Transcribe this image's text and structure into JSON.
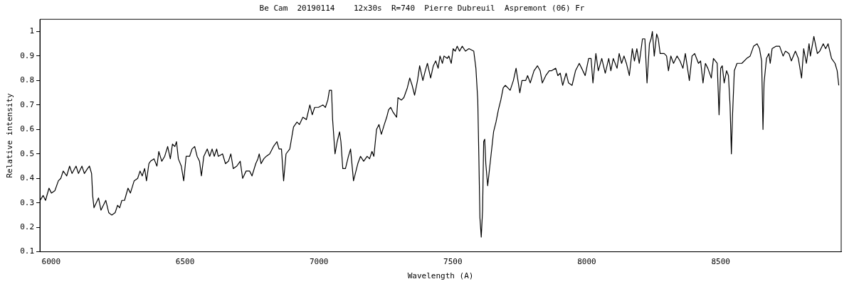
{
  "chart_data": {
    "type": "line",
    "title": "Be Cam  20190114    12x30s  R=740  Pierre Dubreuil  Aspremont (06) Fr",
    "xlabel": "Wavelength (A)",
    "ylabel": "Relative intensity",
    "xlim": [
      5958,
      8950
    ],
    "xticks": [
      6000,
      6500,
      7000,
      7500,
      8000,
      8500
    ],
    "ylim": [
      0.1,
      1.05
    ],
    "yticks": [
      0.1,
      0.2,
      0.3,
      0.4,
      0.5,
      0.6,
      0.7,
      0.8,
      0.9,
      1
    ],
    "grid": false,
    "legend": false,
    "marker": "none",
    "line_style": "solid",
    "series": [
      {
        "color": "#000000",
        "x": [
          5959,
          5970,
          5979,
          5992,
          6001,
          6014,
          6027,
          6036,
          6045,
          6058,
          6069,
          6078,
          6093,
          6102,
          6115,
          6124,
          6136,
          6143,
          6151,
          6155,
          6160,
          6177,
          6186,
          6204,
          6215,
          6226,
          6239,
          6248,
          6256,
          6264,
          6274,
          6287,
          6296,
          6310,
          6323,
          6332,
          6340,
          6349,
          6356,
          6365,
          6371,
          6384,
          6395,
          6402,
          6413,
          6424,
          6435,
          6445,
          6453,
          6462,
          6468,
          6475,
          6486,
          6495,
          6504,
          6517,
          6526,
          6536,
          6545,
          6554,
          6561,
          6570,
          6583,
          6592,
          6601,
          6609,
          6618,
          6624,
          6640,
          6651,
          6662,
          6671,
          6680,
          6693,
          6706,
          6715,
          6728,
          6741,
          6750,
          6764,
          6772,
          6777,
          6784,
          6794,
          6803,
          6816,
          6830,
          6843,
          6851,
          6860,
          6868,
          6877,
          6891,
          6905,
          6918,
          6927,
          6940,
          6953,
          6966,
          6975,
          6984,
          6998,
          7015,
          7024,
          7033,
          7039,
          7047,
          7051,
          7060,
          7068,
          7077,
          7082,
          7089,
          7099,
          7110,
          7118,
          7129,
          7145,
          7155,
          7167,
          7180,
          7189,
          7198,
          7205,
          7215,
          7224,
          7233,
          7244,
          7253,
          7260,
          7268,
          7277,
          7290,
          7295,
          7308,
          7317,
          7330,
          7339,
          7348,
          7357,
          7368,
          7376,
          7388,
          7397,
          7405,
          7417,
          7427,
          7436,
          7445,
          7452,
          7461,
          7467,
          7479,
          7485,
          7494,
          7501,
          7509,
          7516,
          7525,
          7535,
          7547,
          7560,
          7578,
          7586,
          7593,
          7597,
          7601,
          7606,
          7611,
          7615,
          7619,
          7623,
          7630,
          7639,
          7652,
          7661,
          7670,
          7679,
          7688,
          7696,
          7705,
          7714,
          7726,
          7736,
          7750,
          7758,
          7772,
          7779,
          7789,
          7803,
          7816,
          7826,
          7834,
          7847,
          7860,
          7869,
          7884,
          7892,
          7901,
          7910,
          7923,
          7932,
          7945,
          7958,
          7972,
          7981,
          7994,
          8007,
          8016,
          8023,
          8034,
          8043,
          8056,
          8069,
          8082,
          8090,
          8099,
          8113,
          8121,
          8130,
          8139,
          8148,
          8159,
          8170,
          8178,
          8187,
          8196,
          8208,
          8217,
          8225,
          8234,
          8240,
          8245,
          8252,
          8261,
          8267,
          8274,
          8289,
          8298,
          8305,
          8314,
          8324,
          8337,
          8348,
          8359,
          8368,
          8383,
          8393,
          8403,
          8417,
          8425,
          8434,
          8443,
          8452,
          8465,
          8473,
          8487,
          8494,
          8500,
          8506,
          8513,
          8522,
          8529,
          8535,
          8540,
          8544,
          8551,
          8561,
          8579,
          8597,
          8610,
          8623,
          8636,
          8645,
          8653,
          8658,
          8662,
          8671,
          8680,
          8685,
          8692,
          8707,
          8720,
          8733,
          8742,
          8755,
          8764,
          8779,
          8790,
          8802,
          8810,
          8820,
          8830,
          8835,
          8848,
          8861,
          8870,
          8883,
          8892,
          8901,
          8914,
          8927,
          8935,
          8941
        ],
        "values": [
          0.31,
          0.33,
          0.31,
          0.36,
          0.34,
          0.35,
          0.39,
          0.4,
          0.43,
          0.41,
          0.45,
          0.42,
          0.45,
          0.42,
          0.45,
          0.42,
          0.44,
          0.45,
          0.42,
          0.33,
          0.28,
          0.32,
          0.27,
          0.31,
          0.26,
          0.25,
          0.26,
          0.29,
          0.28,
          0.31,
          0.31,
          0.36,
          0.34,
          0.39,
          0.4,
          0.43,
          0.41,
          0.44,
          0.39,
          0.46,
          0.47,
          0.48,
          0.45,
          0.51,
          0.47,
          0.49,
          0.53,
          0.48,
          0.54,
          0.53,
          0.55,
          0.48,
          0.45,
          0.39,
          0.49,
          0.49,
          0.52,
          0.53,
          0.49,
          0.47,
          0.41,
          0.49,
          0.52,
          0.49,
          0.52,
          0.49,
          0.52,
          0.49,
          0.5,
          0.46,
          0.47,
          0.5,
          0.44,
          0.45,
          0.47,
          0.4,
          0.43,
          0.43,
          0.41,
          0.46,
          0.48,
          0.5,
          0.46,
          0.48,
          0.49,
          0.5,
          0.53,
          0.55,
          0.52,
          0.52,
          0.39,
          0.5,
          0.52,
          0.61,
          0.63,
          0.62,
          0.65,
          0.64,
          0.7,
          0.66,
          0.69,
          0.69,
          0.7,
          0.69,
          0.72,
          0.76,
          0.76,
          0.64,
          0.5,
          0.55,
          0.59,
          0.55,
          0.44,
          0.44,
          0.49,
          0.52,
          0.39,
          0.46,
          0.49,
          0.47,
          0.49,
          0.48,
          0.51,
          0.49,
          0.6,
          0.62,
          0.58,
          0.62,
          0.65,
          0.68,
          0.69,
          0.67,
          0.65,
          0.73,
          0.72,
          0.73,
          0.77,
          0.81,
          0.78,
          0.74,
          0.8,
          0.86,
          0.8,
          0.84,
          0.87,
          0.81,
          0.86,
          0.88,
          0.85,
          0.9,
          0.87,
          0.9,
          0.89,
          0.9,
          0.87,
          0.93,
          0.92,
          0.94,
          0.92,
          0.94,
          0.92,
          0.93,
          0.92,
          0.85,
          0.72,
          0.49,
          0.24,
          0.16,
          0.27,
          0.55,
          0.56,
          0.46,
          0.37,
          0.46,
          0.59,
          0.63,
          0.68,
          0.72,
          0.77,
          0.78,
          0.77,
          0.76,
          0.8,
          0.85,
          0.75,
          0.8,
          0.8,
          0.82,
          0.79,
          0.84,
          0.86,
          0.84,
          0.79,
          0.82,
          0.84,
          0.84,
          0.85,
          0.82,
          0.83,
          0.78,
          0.83,
          0.79,
          0.78,
          0.84,
          0.87,
          0.85,
          0.82,
          0.89,
          0.89,
          0.79,
          0.91,
          0.84,
          0.89,
          0.83,
          0.89,
          0.84,
          0.89,
          0.85,
          0.91,
          0.87,
          0.9,
          0.87,
          0.82,
          0.93,
          0.88,
          0.93,
          0.87,
          0.97,
          0.97,
          0.79,
          0.95,
          0.97,
          1,
          0.9,
          0.99,
          0.97,
          0.91,
          0.91,
          0.9,
          0.84,
          0.9,
          0.87,
          0.9,
          0.88,
          0.85,
          0.91,
          0.8,
          0.9,
          0.91,
          0.87,
          0.88,
          0.79,
          0.87,
          0.85,
          0.81,
          0.89,
          0.87,
          0.66,
          0.85,
          0.86,
          0.79,
          0.84,
          0.82,
          0.7,
          0.5,
          0.65,
          0.84,
          0.87,
          0.87,
          0.89,
          0.9,
          0.94,
          0.95,
          0.93,
          0.88,
          0.6,
          0.79,
          0.89,
          0.91,
          0.87,
          0.93,
          0.94,
          0.94,
          0.9,
          0.92,
          0.91,
          0.88,
          0.92,
          0.89,
          0.81,
          0.93,
          0.87,
          0.95,
          0.9,
          0.98,
          0.91,
          0.92,
          0.95,
          0.93,
          0.95,
          0.89,
          0.87,
          0.84,
          0.78
        ]
      }
    ]
  }
}
